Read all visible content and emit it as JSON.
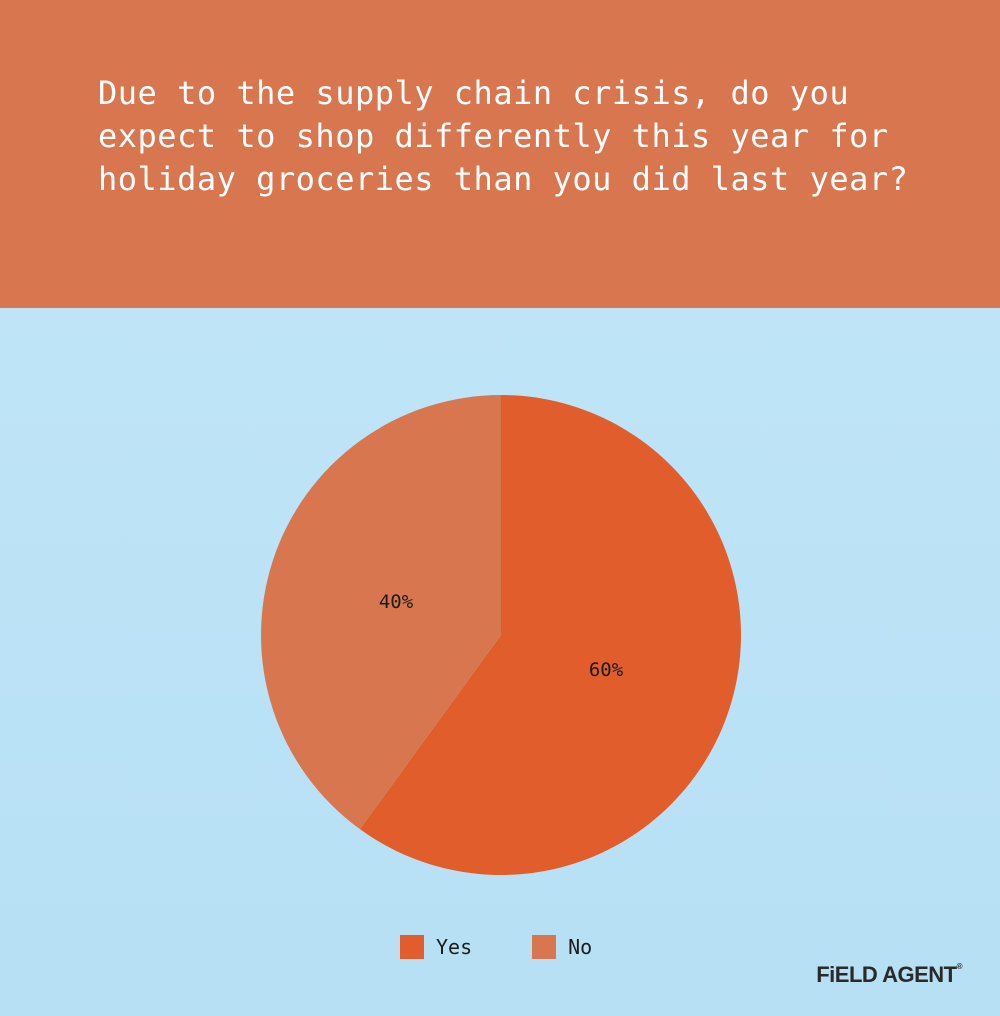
{
  "question": "Due to the supply chain crisis, do you expect to shop differently this year for holiday groceries than you did last year?",
  "colors": {
    "header_bg": "#d8774f",
    "panel_bg": "#bde3f6",
    "yes": "#e15d2b",
    "no": "#d8774f"
  },
  "chart_data": {
    "type": "pie",
    "slices": [
      {
        "label": "Yes",
        "value": 60,
        "display": "60%",
        "color": "#e15d2b"
      },
      {
        "label": "No",
        "value": 40,
        "display": "40%",
        "color": "#d8774f"
      }
    ],
    "start_angle": "12 o'clock, clockwise",
    "legend_position": "bottom"
  },
  "legend": [
    {
      "label": "Yes",
      "color": "#e15d2b"
    },
    {
      "label": "No",
      "color": "#d8774f"
    }
  ],
  "brand": "FiELD AGENT"
}
